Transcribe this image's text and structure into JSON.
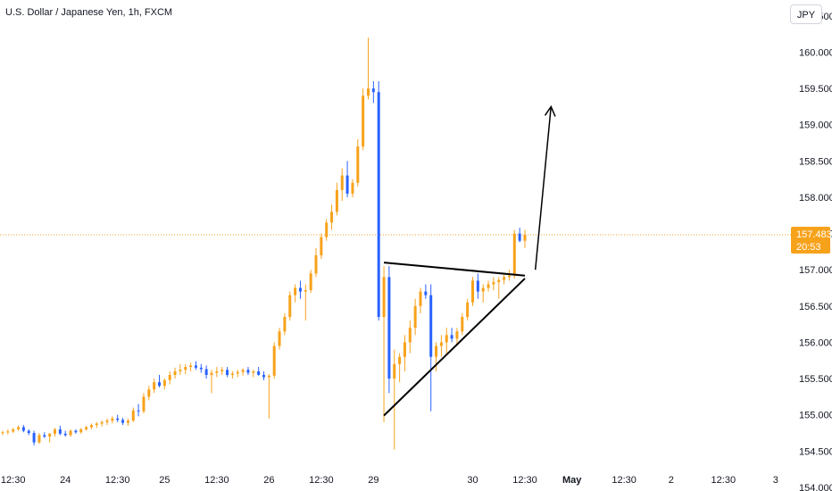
{
  "header": {
    "title": "U.S. Dollar / Japanese Yen, 1h, FXCM",
    "currency": "JPY"
  },
  "colors": {
    "up": "#f7a21b",
    "down": "#2962ff",
    "priceLine": "#f7a21b",
    "drawing": "#000000"
  },
  "last_price": {
    "value": "157.483",
    "countdown": "20:53",
    "numeric": 157.483
  },
  "chart_data": {
    "type": "candlestick",
    "title": "U.S. Dollar / Japanese Yen, 1h, FXCM",
    "xlabel": "",
    "ylabel": "",
    "ylim": [
      153.95,
      160.72
    ],
    "y_ticks": [
      "160.000",
      "159.500",
      "159.000",
      "158.500",
      "158.000",
      "157.500",
      "157.000",
      "156.500",
      "156.000",
      "155.500",
      "155.000",
      "154.500",
      "154.000"
    ],
    "y_top_partial": "160.500",
    "x_ticks": [
      {
        "label": "12:30",
        "bold": false,
        "at": 2
      },
      {
        "label": "24",
        "bold": false,
        "at": 12
      },
      {
        "label": "12:30",
        "bold": false,
        "at": 22
      },
      {
        "label": "25",
        "bold": false,
        "at": 31
      },
      {
        "label": "12:30",
        "bold": false,
        "at": 41
      },
      {
        "label": "26",
        "bold": false,
        "at": 51
      },
      {
        "label": "12:30",
        "bold": false,
        "at": 61
      },
      {
        "label": "29",
        "bold": false,
        "at": 71
      },
      {
        "label": "30",
        "bold": false,
        "at": 90
      },
      {
        "label": "12:30",
        "bold": false,
        "at": 100
      },
      {
        "label": "May",
        "bold": true,
        "at": 109
      },
      {
        "label": "12:30",
        "bold": false,
        "at": 119
      },
      {
        "label": "2",
        "bold": false,
        "at": 128
      },
      {
        "label": "12:30",
        "bold": false,
        "at": 138
      },
      {
        "label": "3",
        "bold": false,
        "at": 148
      }
    ],
    "candles": [
      [
        154.75,
        154.78,
        154.72,
        154.76
      ],
      [
        154.76,
        154.8,
        154.73,
        154.77
      ],
      [
        154.77,
        154.82,
        154.75,
        154.8
      ],
      [
        154.8,
        154.85,
        154.78,
        154.83
      ],
      [
        154.83,
        154.86,
        154.76,
        154.78
      ],
      [
        154.78,
        154.8,
        154.72,
        154.75
      ],
      [
        154.75,
        154.78,
        154.58,
        154.62
      ],
      [
        154.62,
        154.75,
        154.6,
        154.72
      ],
      [
        154.72,
        154.76,
        154.68,
        154.7
      ],
      [
        154.7,
        154.75,
        154.62,
        154.74
      ],
      [
        154.74,
        154.82,
        154.7,
        154.8
      ],
      [
        154.8,
        154.85,
        154.72,
        154.74
      ],
      [
        154.74,
        154.78,
        154.7,
        154.72
      ],
      [
        154.72,
        154.8,
        154.7,
        154.78
      ],
      [
        154.78,
        154.8,
        154.74,
        154.76
      ],
      [
        154.76,
        154.82,
        154.74,
        154.8
      ],
      [
        154.8,
        154.85,
        154.78,
        154.83
      ],
      [
        154.83,
        154.88,
        154.8,
        154.86
      ],
      [
        154.86,
        154.9,
        154.82,
        154.88
      ],
      [
        154.88,
        154.92,
        154.84,
        154.9
      ],
      [
        154.9,
        154.95,
        154.86,
        154.92
      ],
      [
        154.92,
        154.98,
        154.88,
        154.95
      ],
      [
        154.95,
        155.0,
        154.9,
        154.93
      ],
      [
        154.93,
        154.96,
        154.86,
        154.89
      ],
      [
        154.89,
        154.95,
        154.85,
        154.92
      ],
      [
        154.92,
        155.1,
        154.9,
        155.06
      ],
      [
        155.06,
        155.15,
        154.98,
        155.05
      ],
      [
        155.05,
        155.3,
        155.02,
        155.25
      ],
      [
        155.25,
        155.4,
        155.2,
        155.35
      ],
      [
        155.35,
        155.5,
        155.3,
        155.45
      ],
      [
        155.45,
        155.55,
        155.38,
        155.4
      ],
      [
        155.4,
        155.5,
        155.35,
        155.48
      ],
      [
        155.48,
        155.6,
        155.42,
        155.55
      ],
      [
        155.55,
        155.65,
        155.5,
        155.6
      ],
      [
        155.6,
        155.7,
        155.55,
        155.62
      ],
      [
        155.62,
        155.7,
        155.56,
        155.66
      ],
      [
        155.66,
        155.72,
        155.6,
        155.68
      ],
      [
        155.68,
        155.74,
        155.62,
        155.65
      ],
      [
        155.65,
        155.7,
        155.58,
        155.63
      ],
      [
        155.63,
        155.68,
        155.5,
        155.55
      ],
      [
        155.55,
        155.62,
        155.3,
        155.58
      ],
      [
        155.58,
        155.66,
        155.52,
        155.6
      ],
      [
        155.6,
        155.66,
        155.55,
        155.62
      ],
      [
        155.62,
        155.66,
        155.52,
        155.55
      ],
      [
        155.55,
        155.6,
        155.5,
        155.57
      ],
      [
        155.57,
        155.62,
        155.52,
        155.59
      ],
      [
        155.59,
        155.64,
        155.54,
        155.62
      ],
      [
        155.62,
        155.66,
        155.55,
        155.58
      ],
      [
        155.58,
        155.62,
        155.52,
        155.6
      ],
      [
        155.6,
        155.66,
        155.54,
        155.55
      ],
      [
        155.55,
        155.6,
        155.48,
        155.52
      ],
      [
        155.52,
        155.56,
        154.95,
        155.54
      ],
      [
        155.54,
        156.0,
        155.5,
        155.95
      ],
      [
        155.95,
        156.2,
        155.9,
        156.15
      ],
      [
        156.15,
        156.4,
        156.1,
        156.35
      ],
      [
        156.35,
        156.7,
        156.3,
        156.65
      ],
      [
        156.65,
        156.8,
        156.55,
        156.75
      ],
      [
        156.75,
        156.85,
        156.6,
        156.7
      ],
      [
        156.7,
        156.8,
        156.3,
        156.72
      ],
      [
        156.72,
        157.0,
        156.68,
        156.95
      ],
      [
        156.95,
        157.3,
        156.9,
        157.2
      ],
      [
        157.2,
        157.5,
        157.15,
        157.45
      ],
      [
        157.45,
        157.7,
        157.4,
        157.65
      ],
      [
        157.65,
        157.9,
        157.55,
        157.8
      ],
      [
        157.8,
        158.2,
        157.75,
        158.1
      ],
      [
        158.1,
        158.4,
        157.95,
        158.3
      ],
      [
        158.3,
        158.5,
        158.0,
        158.05
      ],
      [
        158.05,
        158.25,
        158.0,
        158.2
      ],
      [
        158.2,
        158.8,
        158.15,
        158.7
      ],
      [
        158.7,
        159.5,
        158.65,
        159.4
      ],
      [
        159.4,
        160.2,
        159.35,
        159.5
      ],
      [
        159.5,
        159.6,
        159.3,
        159.45
      ],
      [
        159.45,
        159.6,
        156.3,
        156.35
      ],
      [
        156.35,
        157.05,
        154.9,
        156.9
      ],
      [
        156.9,
        157.05,
        155.3,
        155.5
      ],
      [
        155.5,
        155.9,
        154.52,
        155.7
      ],
      [
        155.7,
        155.85,
        155.45,
        155.8
      ],
      [
        155.8,
        156.1,
        155.6,
        156.0
      ],
      [
        156.0,
        156.3,
        155.85,
        156.2
      ],
      [
        156.2,
        156.6,
        156.1,
        156.5
      ],
      [
        156.5,
        156.75,
        156.4,
        156.7
      ],
      [
        156.7,
        156.8,
        156.6,
        156.65
      ],
      [
        156.65,
        156.8,
        155.05,
        155.8
      ],
      [
        155.8,
        156.0,
        155.6,
        155.95
      ],
      [
        155.95,
        156.1,
        155.8,
        156.0
      ],
      [
        156.0,
        156.2,
        155.85,
        156.1
      ],
      [
        156.1,
        156.2,
        156.0,
        156.05
      ],
      [
        156.05,
        156.2,
        155.95,
        156.15
      ],
      [
        156.15,
        156.4,
        156.1,
        156.35
      ],
      [
        156.35,
        156.6,
        156.3,
        156.55
      ],
      [
        156.55,
        156.9,
        156.5,
        156.85
      ],
      [
        156.85,
        156.95,
        156.6,
        156.7
      ],
      [
        156.7,
        156.8,
        156.55,
        156.75
      ],
      [
        156.75,
        156.85,
        156.7,
        156.8
      ],
      [
        156.8,
        156.9,
        156.72,
        156.83
      ],
      [
        156.83,
        156.9,
        156.6,
        156.86
      ],
      [
        156.86,
        156.95,
        156.8,
        156.9
      ],
      [
        156.9,
        157.0,
        156.85,
        156.92
      ],
      [
        156.92,
        157.55,
        156.88,
        157.5
      ],
      [
        157.5,
        157.58,
        157.38,
        157.4
      ],
      [
        157.4,
        157.55,
        157.3,
        157.483
      ]
    ],
    "drawings": {
      "upper_trendline": {
        "from": [
          73,
          157.1
        ],
        "to": [
          100,
          156.92
        ]
      },
      "lower_trendline": {
        "from": [
          73,
          154.99
        ],
        "to": [
          100,
          156.88
        ]
      },
      "arrow": {
        "from": [
          102,
          157.0
        ],
        "to": [
          105,
          159.25
        ]
      }
    }
  }
}
